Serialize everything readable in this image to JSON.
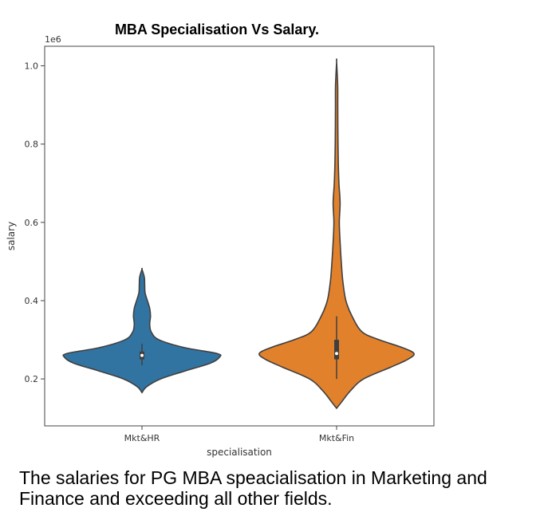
{
  "chart_data": {
    "type": "violin",
    "title": "MBA Specialisation Vs Salary.",
    "xlabel": "specialisation",
    "ylabel": "salary",
    "y_offset_label": "1e6",
    "ylim": [
      0.08,
      1.05
    ],
    "yticks": [
      0.2,
      0.4,
      0.6,
      0.8,
      1.0
    ],
    "ytick_labels": [
      "0.2",
      "0.4",
      "0.6",
      "0.8",
      "1.0"
    ],
    "categories": [
      "Mkt&HR",
      "Mkt&Fin"
    ],
    "grid": false,
    "violins": [
      {
        "category": "Mkt&HR",
        "color": "#3274a1",
        "min": 0.165,
        "max": 0.48,
        "q1": 0.25,
        "median": 0.26,
        "q3": 0.27,
        "whisker_low": 0.235,
        "whisker_high": 0.29,
        "profile": [
          [
            0.165,
            0.0
          ],
          [
            0.18,
            0.06
          ],
          [
            0.2,
            0.24
          ],
          [
            0.22,
            0.55
          ],
          [
            0.24,
            0.88
          ],
          [
            0.255,
            1.0
          ],
          [
            0.265,
            0.97
          ],
          [
            0.28,
            0.55
          ],
          [
            0.3,
            0.22
          ],
          [
            0.32,
            0.12
          ],
          [
            0.34,
            0.1
          ],
          [
            0.36,
            0.11
          ],
          [
            0.38,
            0.1
          ],
          [
            0.4,
            0.07
          ],
          [
            0.42,
            0.04
          ],
          [
            0.44,
            0.035
          ],
          [
            0.46,
            0.03
          ],
          [
            0.48,
            0.0
          ]
        ]
      },
      {
        "category": "Mkt&Fin",
        "color": "#e1812c",
        "min": 0.125,
        "max": 1.01,
        "q1": 0.25,
        "median": 0.265,
        "q3": 0.3,
        "whisker_low": 0.2,
        "whisker_high": 0.36,
        "profile": [
          [
            0.125,
            0.0
          ],
          [
            0.14,
            0.06
          ],
          [
            0.17,
            0.18
          ],
          [
            0.2,
            0.35
          ],
          [
            0.23,
            0.7
          ],
          [
            0.25,
            0.92
          ],
          [
            0.265,
            1.0
          ],
          [
            0.28,
            0.85
          ],
          [
            0.3,
            0.55
          ],
          [
            0.32,
            0.33
          ],
          [
            0.36,
            0.2
          ],
          [
            0.4,
            0.12
          ],
          [
            0.45,
            0.08
          ],
          [
            0.5,
            0.06
          ],
          [
            0.55,
            0.045
          ],
          [
            0.6,
            0.035
          ],
          [
            0.65,
            0.045
          ],
          [
            0.7,
            0.03
          ],
          [
            0.75,
            0.022
          ],
          [
            0.8,
            0.018
          ],
          [
            0.85,
            0.016
          ],
          [
            0.9,
            0.015
          ],
          [
            0.95,
            0.014
          ],
          [
            1.01,
            0.0
          ]
        ]
      }
    ]
  },
  "caption": "The salaries for PG MBA speacialisation in Marketing and Finance and exceeding all other fields."
}
